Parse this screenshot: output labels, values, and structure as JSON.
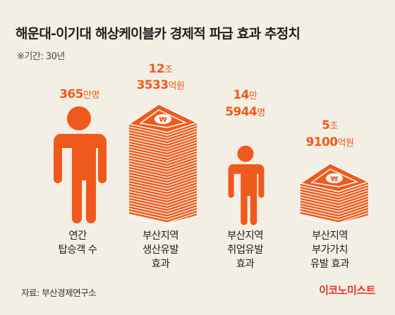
{
  "title": "해운대-이기대 해상케이블카 경제적 파급 효과 추정치",
  "period": "※기간: 30년",
  "items": [
    {
      "id": "passengers",
      "value_lines": [
        {
          "number": "365",
          "unit": "만명"
        }
      ],
      "label_lines": [
        "연간",
        "탑승객 수"
      ],
      "icon": "person-icon"
    },
    {
      "id": "production",
      "value_lines": [
        {
          "number": "12",
          "unit": "조"
        },
        {
          "number": "3533",
          "unit": "억원"
        }
      ],
      "label_lines": [
        "부산지역",
        "생산유발",
        "효과"
      ],
      "icon": "money-stack-icon"
    },
    {
      "id": "employment",
      "value_lines": [
        {
          "number": "14",
          "unit": "만"
        },
        {
          "number": "5944",
          "unit": "명"
        }
      ],
      "label_lines": [
        "부산지역",
        "취업유발",
        "효과"
      ],
      "icon": "person-icon"
    },
    {
      "id": "value-added",
      "value_lines": [
        {
          "number": "5",
          "unit": "조"
        },
        {
          "number": "9100",
          "unit": "억원"
        }
      ],
      "label_lines": [
        "부산지역",
        "부가가치",
        "유발 효과"
      ],
      "icon": "money-stack-icon"
    }
  ],
  "source": "자료: 부산경제연구소",
  "brand": "이코노미스트",
  "colors": {
    "accent": "#ef5a1c",
    "background": "#f3efe4",
    "brand": "#e3322b"
  }
}
